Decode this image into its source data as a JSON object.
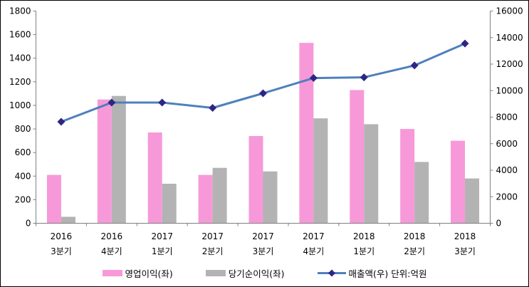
{
  "window": {
    "background": "#ffffff",
    "border_color": "#000000"
  },
  "chart_data": {
    "type": "bar",
    "subtype": "combo-bar-line",
    "title": "",
    "xlabel": "",
    "ylabel": "",
    "grid": false,
    "legend_position": "bottom",
    "axis_color": "#808080",
    "categories": [
      {
        "line1": "2016",
        "line2": "3분기"
      },
      {
        "line1": "2016",
        "line2": "4분기"
      },
      {
        "line1": "2017",
        "line2": "1분기"
      },
      {
        "line1": "2017",
        "line2": "2분기"
      },
      {
        "line1": "2017",
        "line2": "3분기"
      },
      {
        "line1": "2017",
        "line2": "4분기"
      },
      {
        "line1": "2018",
        "line2": "1분기"
      },
      {
        "line1": "2018",
        "line2": "2분기"
      },
      {
        "line1": "2018",
        "line2": "3분기"
      }
    ],
    "series": [
      {
        "name": "영업이익(좌)",
        "type": "bar",
        "axis": "left",
        "color": "#F799D8",
        "values": [
          410,
          1050,
          770,
          410,
          740,
          1530,
          1130,
          800,
          700
        ]
      },
      {
        "name": "당기순이익(좌)",
        "type": "bar",
        "axis": "left",
        "color": "#B3B3B3",
        "values": [
          55,
          1080,
          335,
          470,
          440,
          890,
          840,
          520,
          380
        ]
      },
      {
        "name": "매출액(우) 단위:억원",
        "type": "line",
        "axis": "right",
        "color": "#4E80BC",
        "marker": "diamond",
        "marker_color": "#2E2585",
        "values": [
          7650,
          9100,
          9100,
          8700,
          9800,
          10950,
          11000,
          11900,
          13550
        ]
      }
    ],
    "y_left": {
      "min": 0,
      "max": 1800,
      "step": 200,
      "ticks": [
        "0",
        "200",
        "400",
        "600",
        "800",
        "1000",
        "1200",
        "1400",
        "1600",
        "1800"
      ]
    },
    "y_right": {
      "min": 0,
      "max": 16000,
      "step": 2000,
      "ticks": [
        "0",
        "2000",
        "4000",
        "6000",
        "8000",
        "10000",
        "12000",
        "14000",
        "16000"
      ]
    }
  }
}
